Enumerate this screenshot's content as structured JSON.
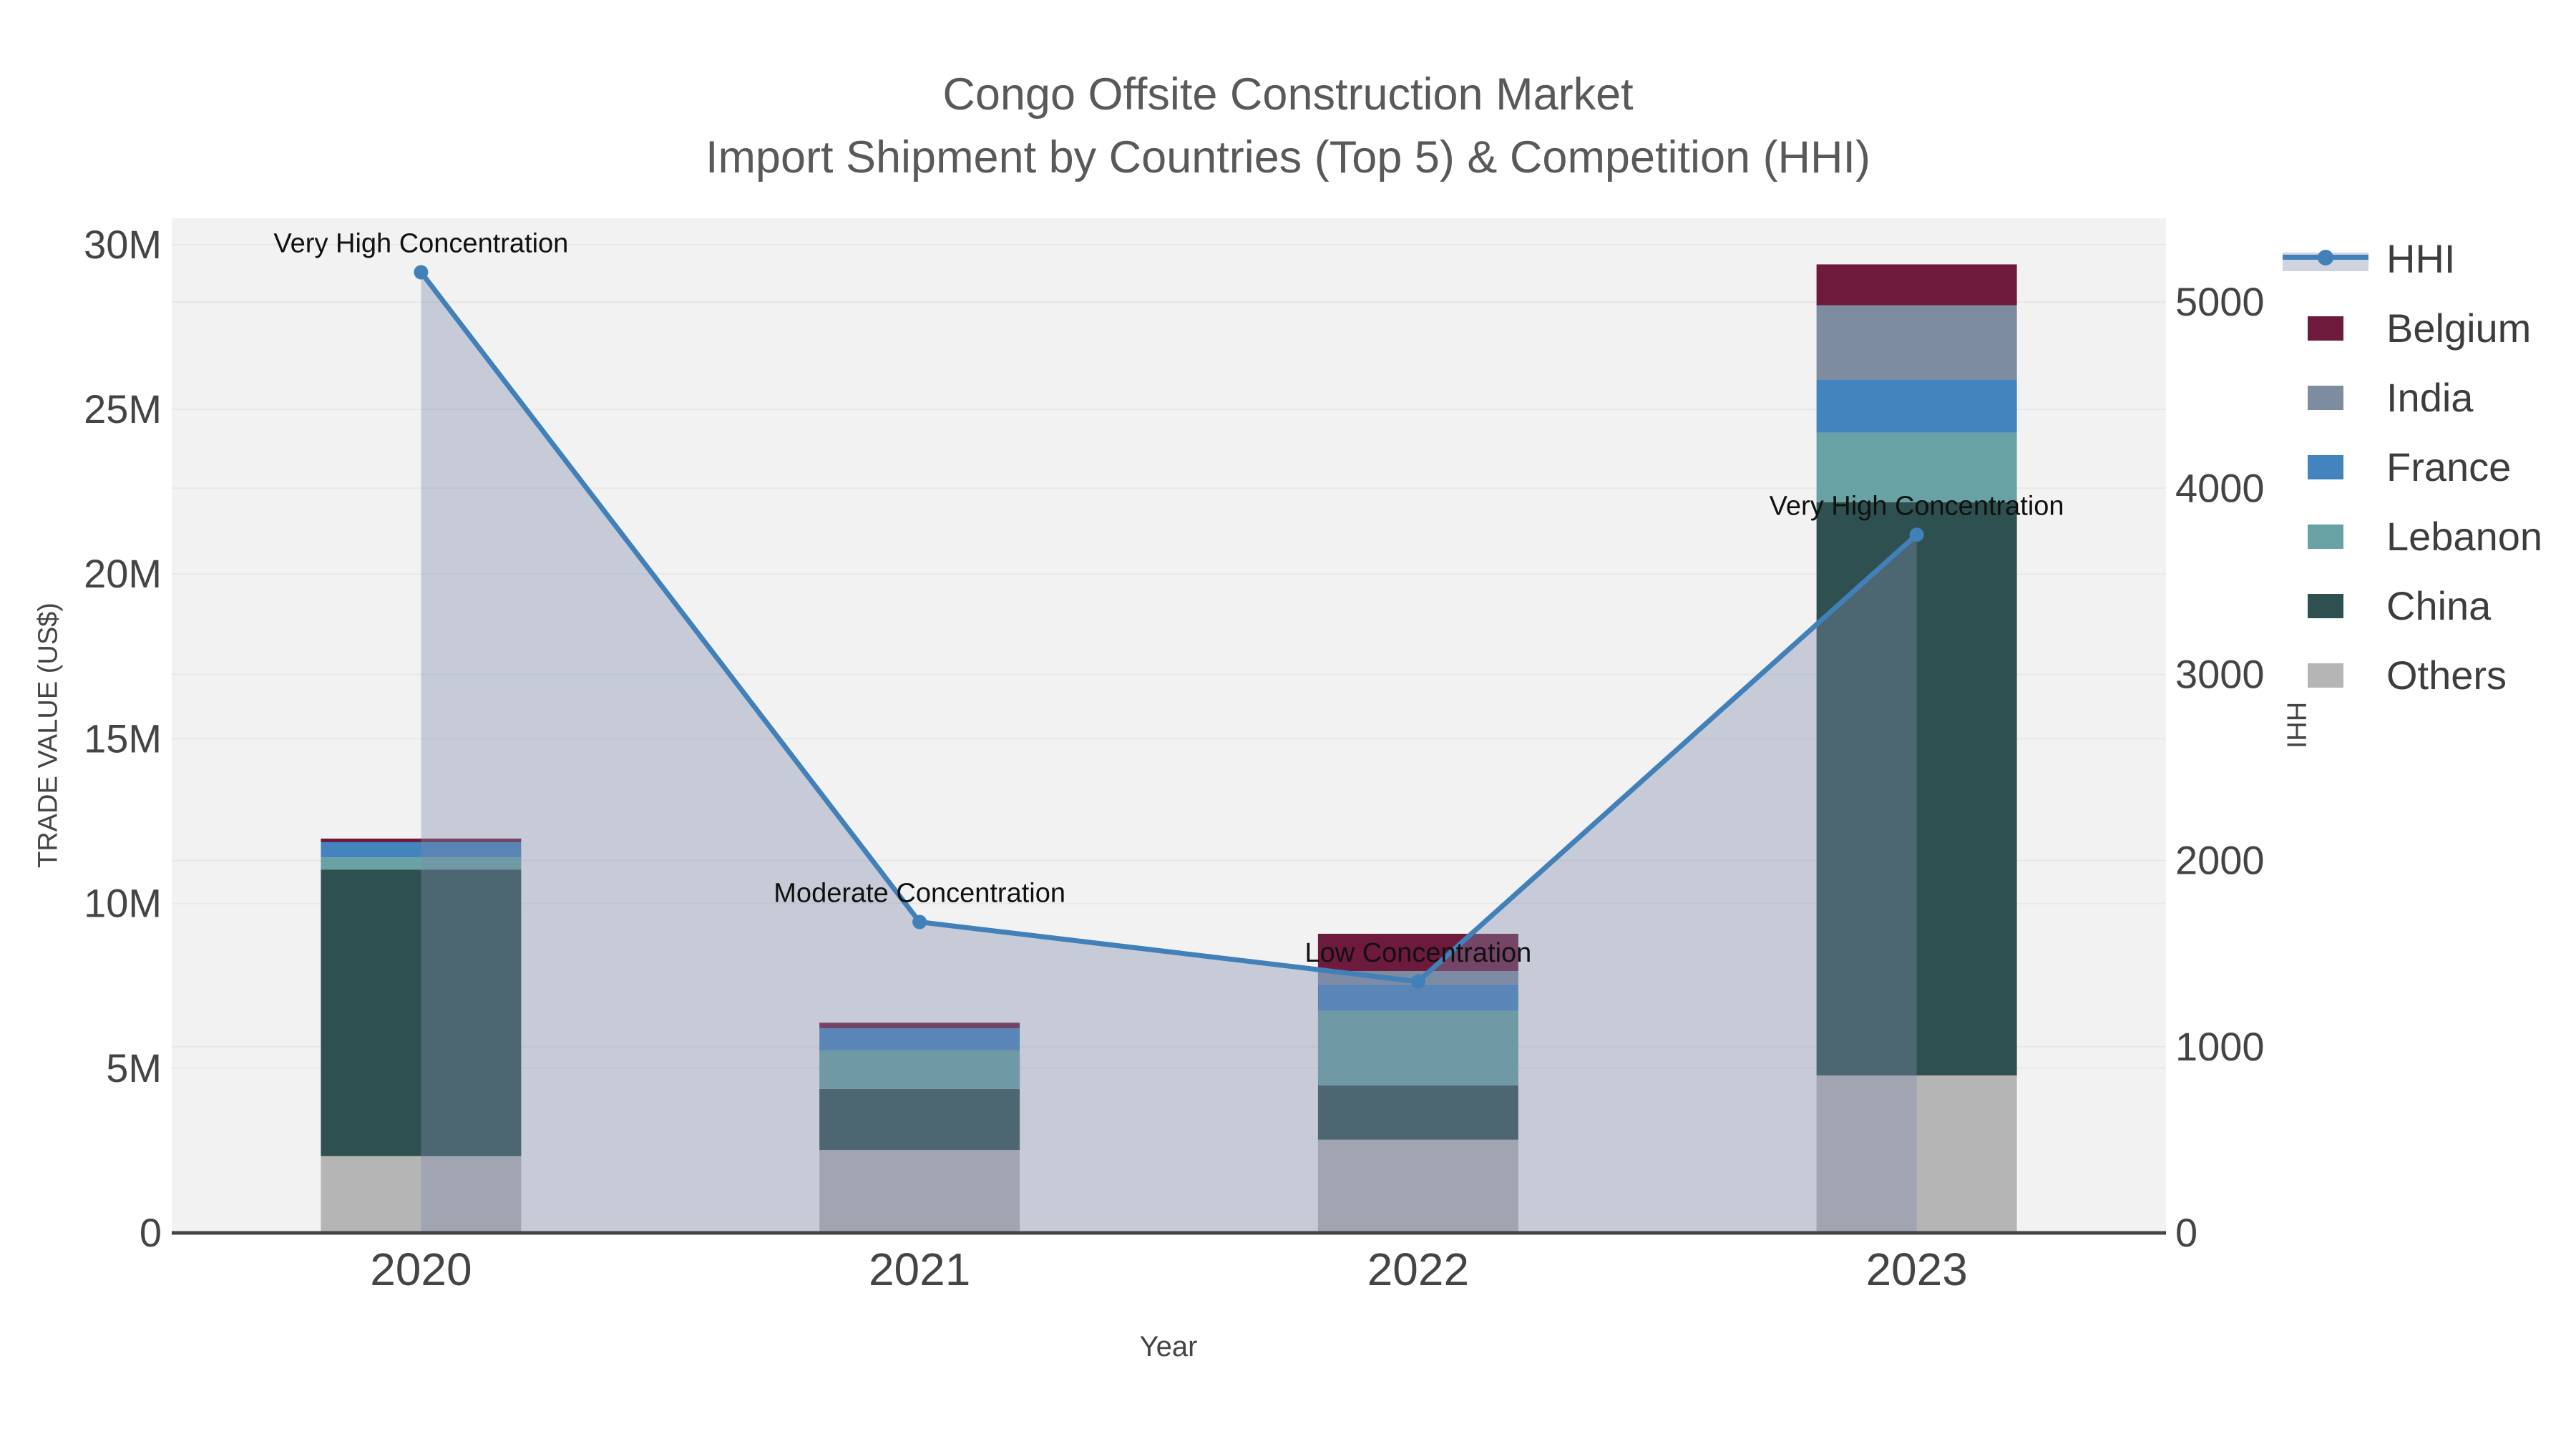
{
  "header": {
    "title_line1": "Congo Offsite Construction Market",
    "title_line2": "Import Shipment by Countries (Top 5) & Competition (HHI)"
  },
  "axes": {
    "left_title": "TRADE VALUE (US$)",
    "right_title": "HHI",
    "x_title": "Year"
  },
  "legend": {
    "area_swatch_color": "#CED3DF",
    "items": [
      {
        "label": "HHI",
        "color": "#4180B8"
      },
      {
        "label": "Belgium",
        "color": "#6E1A3C"
      },
      {
        "label": "India",
        "color": "#7E8CA0"
      },
      {
        "label": "France",
        "color": "#4484BE"
      },
      {
        "label": "Lebanon",
        "color": "#68A2A4"
      },
      {
        "label": "China",
        "color": "#2E5050"
      },
      {
        "label": "Others",
        "color": "#B5B5B5"
      }
    ]
  },
  "chart_data": {
    "type": "bar",
    "subtype": "stacked-bars-with-line",
    "title": "Congo Offsite Construction Market — Import Shipment by Countries (Top 5) & Competition (HHI)",
    "categories": [
      "2020",
      "2021",
      "2022",
      "2023"
    ],
    "series": [
      {
        "name": "Others",
        "color": "#B5B5B5",
        "values": [
          2330000,
          2520000,
          2830000,
          4780000
        ]
      },
      {
        "name": "China",
        "color": "#2E5050",
        "values": [
          8700000,
          1850000,
          1650000,
          17400000
        ]
      },
      {
        "name": "Lebanon",
        "color": "#68A2A4",
        "values": [
          370000,
          1170000,
          2260000,
          2110000
        ]
      },
      {
        "name": "France",
        "color": "#4484BE",
        "values": [
          460000,
          670000,
          800000,
          1610000
        ]
      },
      {
        "name": "India",
        "color": "#7E8CA0",
        "values": [
          0,
          0,
          410000,
          2260000
        ]
      },
      {
        "name": "Belgium",
        "color": "#6E1A3C",
        "values": [
          110000,
          170000,
          1130000,
          1240000
        ]
      }
    ],
    "line": {
      "name": "HHI",
      "axis": "right",
      "color": "#4180B8",
      "area_fill": "rgba(125,140,170,0.38)",
      "values": [
        5160,
        1670,
        1350,
        3750
      ]
    },
    "annotations": [
      {
        "category": "2020",
        "text": "Very High Concentration"
      },
      {
        "category": "2021",
        "text": "Moderate Concentration"
      },
      {
        "category": "2022",
        "text": "Low Concentration"
      },
      {
        "category": "2023",
        "text": "Very High Concentration"
      }
    ],
    "left_axis": {
      "label": "TRADE VALUE (US$)",
      "range": [
        0,
        30800000
      ],
      "tick_values": [
        0,
        5000000,
        10000000,
        15000000,
        20000000,
        25000000,
        30000000
      ],
      "tick_labels": [
        "0",
        "5M",
        "10M",
        "15M",
        "20M",
        "25M",
        "30M"
      ]
    },
    "right_axis": {
      "label": "HHI",
      "range": [
        0,
        5450
      ],
      "tick_values": [
        0,
        1000,
        2000,
        3000,
        4000,
        5000
      ],
      "tick_labels": [
        "0",
        "1000",
        "2000",
        "3000",
        "4000",
        "5000"
      ]
    },
    "x_axis": {
      "label": "Year"
    },
    "legend_position": "right",
    "grid": true,
    "background": "#F2F2F2",
    "grid_color": "#E7E7E7",
    "axis_line_color": "#444444",
    "tick_color": "#444444",
    "annotation_color": "#111111"
  }
}
